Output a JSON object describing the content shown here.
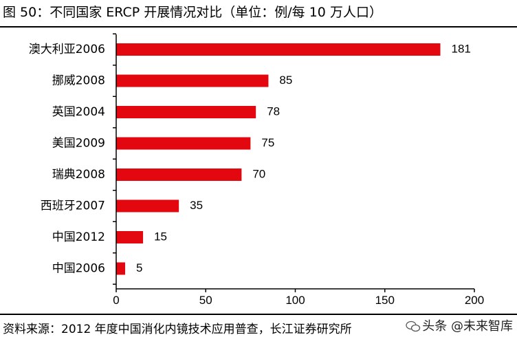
{
  "title": "图 50：不同国家 ERCP 开展情况对比（单位：例/每 10 万人口）",
  "source": "资料来源：2012 年度中国消化内镜技术应用普查，长江证券研究所",
  "watermark": "头条 @未来智库",
  "chart_data": {
    "type": "bar",
    "orientation": "horizontal",
    "categories": [
      "澳大利亚2006",
      "挪威2008",
      "英国2004",
      "美国2009",
      "瑞典2008",
      "西班牙2007",
      "中国2012",
      "中国2006"
    ],
    "values": [
      181,
      85,
      78,
      75,
      70,
      35,
      15,
      5
    ],
    "xlim": [
      0,
      200
    ],
    "xticks": [
      0,
      50,
      100,
      150,
      200
    ],
    "xlabel": "",
    "ylabel": "",
    "grid": false,
    "bar_color": "#e3080f"
  }
}
